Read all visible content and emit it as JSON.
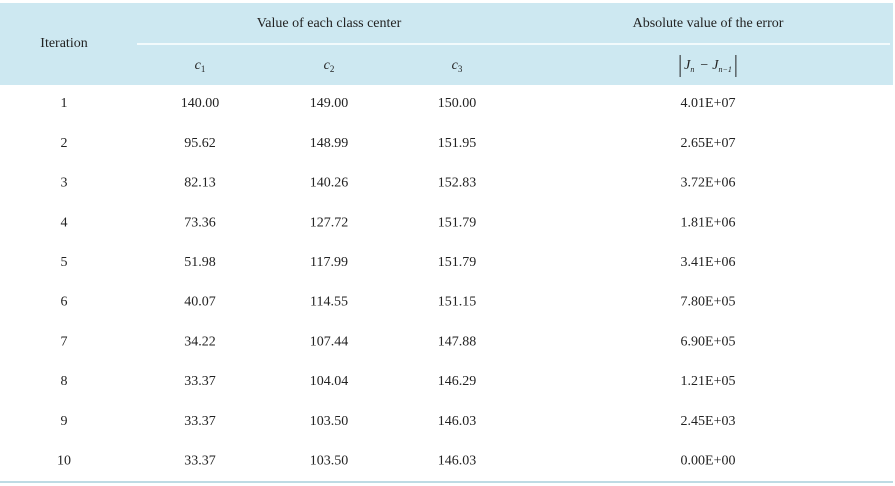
{
  "header": {
    "iteration": "Iteration",
    "centers_group": "Value of each class center",
    "error_group": "Absolute value of the error",
    "center_columns": [
      {
        "symbol": "c",
        "subscript": "1"
      },
      {
        "symbol": "c",
        "subscript": "2"
      },
      {
        "symbol": "c",
        "subscript": "3"
      }
    ],
    "error_formula": {
      "left": "J",
      "left_sub": "n",
      "operator": "−",
      "right": "J",
      "right_sub": "n−1"
    }
  },
  "table": {
    "rows": [
      [
        1,
        "140.00",
        "149.00",
        "150.00",
        "4.01E+07"
      ],
      [
        2,
        "95.62",
        "148.99",
        "151.95",
        "2.65E+07"
      ],
      [
        3,
        "82.13",
        "140.26",
        "152.83",
        "3.72E+06"
      ],
      [
        4,
        "73.36",
        "127.72",
        "151.79",
        "1.81E+06"
      ],
      [
        5,
        "51.98",
        "117.99",
        "151.79",
        "3.41E+06"
      ],
      [
        6,
        "40.07",
        "114.55",
        "151.15",
        "7.80E+05"
      ],
      [
        7,
        "34.22",
        "107.44",
        "147.88",
        "6.90E+05"
      ],
      [
        8,
        "33.37",
        "104.04",
        "146.29",
        "1.21E+05"
      ],
      [
        9,
        "33.37",
        "103.50",
        "146.03",
        "2.45E+03"
      ],
      [
        10,
        "33.37",
        "103.50",
        "146.03",
        "0.00E+00"
      ]
    ]
  }
}
